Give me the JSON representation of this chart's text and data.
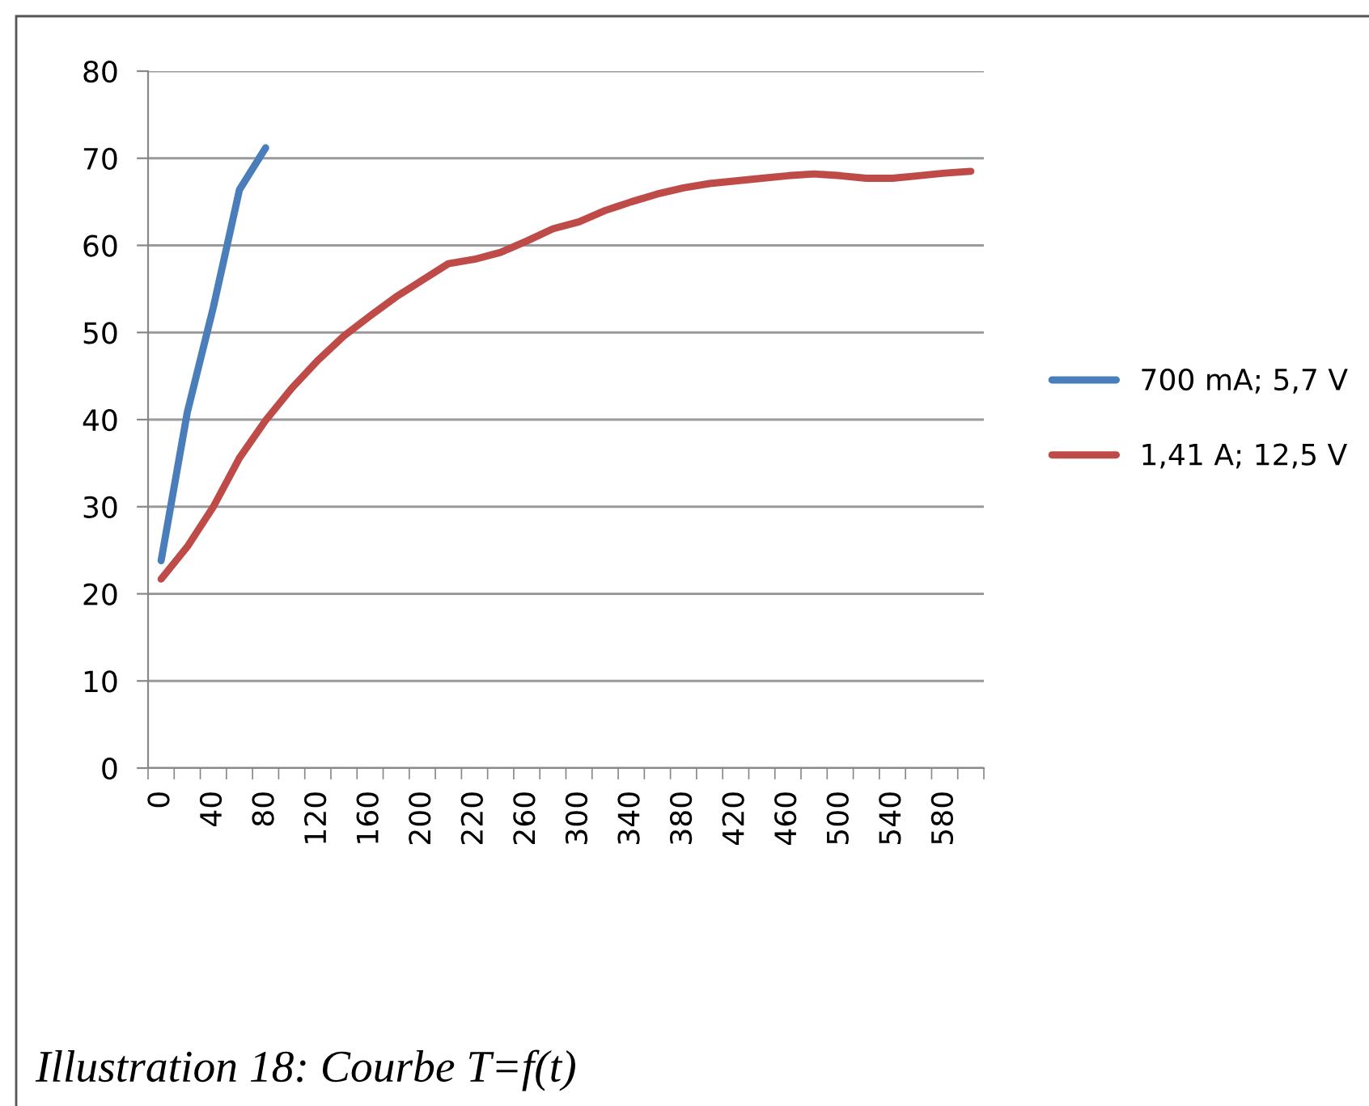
{
  "chart_data": {
    "type": "line",
    "categories": [
      "0",
      null,
      "40",
      null,
      "80",
      null,
      "120",
      null,
      "160",
      null,
      "200",
      null,
      "220",
      null,
      "260",
      null,
      "300",
      null,
      "340",
      null,
      "380",
      null,
      "420",
      null,
      "460",
      null,
      "500",
      null,
      "540",
      null,
      "580",
      null
    ],
    "series": [
      {
        "name": "700 mA; 5,7 V",
        "color": "#4a7ebb",
        "values": [
          23.8,
          40.8,
          52.9,
          66.4,
          71.2,
          null,
          null,
          null,
          null,
          null,
          null,
          null,
          null,
          null,
          null,
          null,
          null,
          null,
          null,
          null,
          null,
          null,
          null,
          null,
          null,
          null,
          null,
          null,
          null,
          null,
          null,
          null
        ]
      },
      {
        "name": "1,41 A; 12,5 V",
        "color": "#be4b48",
        "values": [
          21.7,
          25.4,
          30.0,
          35.6,
          39.9,
          43.6,
          46.8,
          49.6,
          51.9,
          54.1,
          56.0,
          57.9,
          58.4,
          59.2,
          60.5,
          61.9,
          62.7,
          64.0,
          65.0,
          65.9,
          66.6,
          67.1,
          67.4,
          67.7,
          68.0,
          68.2,
          68.0,
          67.7,
          67.7,
          68.0,
          68.3,
          68.5
        ]
      }
    ],
    "ylim": [
      0,
      80
    ],
    "yticks": [
      0,
      10,
      20,
      30,
      40,
      50,
      60,
      70,
      80
    ],
    "grid": "y",
    "legend": "right",
    "marker": "none",
    "line_style": "solid",
    "annotations": [
      "Illustration 18: Courbe T=f(t)"
    ]
  }
}
